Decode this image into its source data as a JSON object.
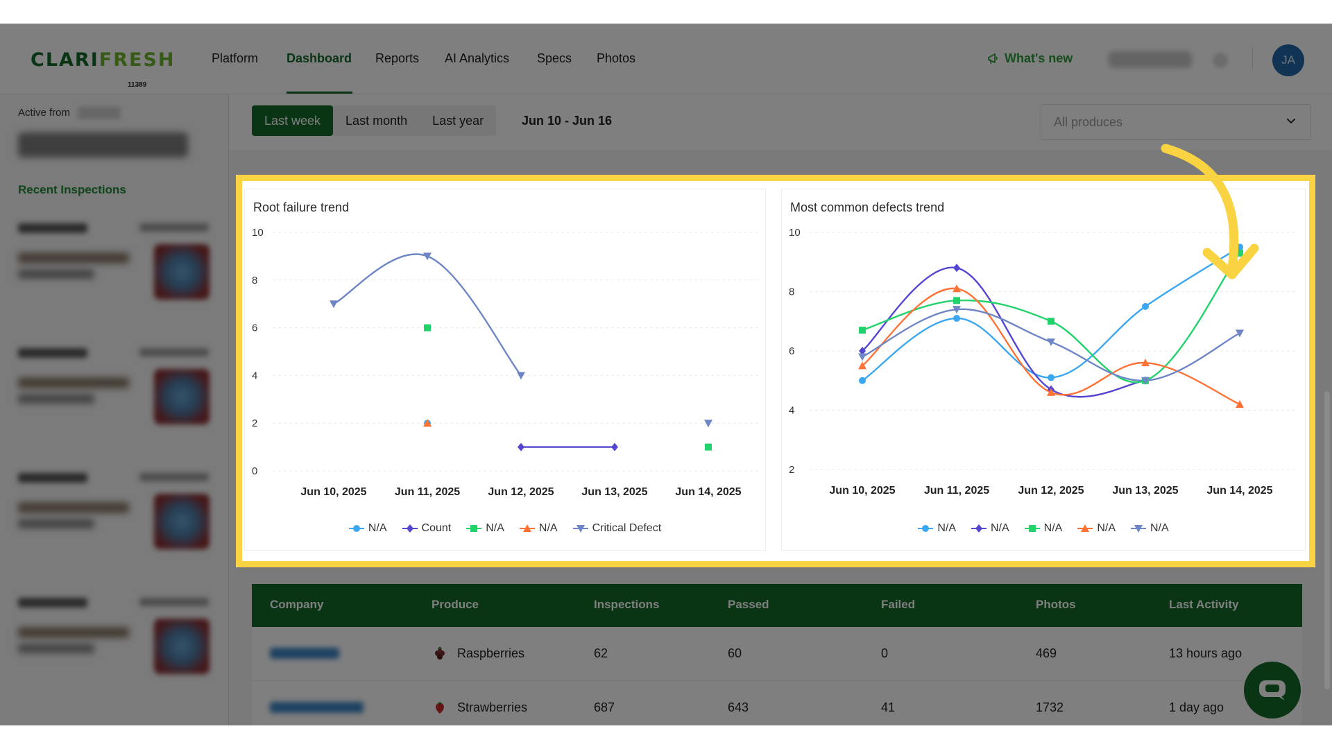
{
  "brand": {
    "logo_left": "CLARI",
    "logo_right": "FRESH",
    "org_id": "11389"
  },
  "nav": {
    "items": [
      "Platform",
      "Dashboard",
      "Reports",
      "AI Analytics",
      "Specs",
      "Photos"
    ],
    "active": "Dashboard",
    "whats_new": "What's new",
    "avatar_initials": "JA"
  },
  "sidebar": {
    "active_from_label": "Active from",
    "recent_title": "Recent Inspections"
  },
  "filters": {
    "ranges": [
      "Last week",
      "Last month",
      "Last year"
    ],
    "active_range": "Last week",
    "date_range": "Jun 10 - Jun 16",
    "produce_placeholder": "All produces"
  },
  "chart_data": [
    {
      "type": "line",
      "title": "Root failure trend",
      "categories": [
        "Jun 10, 2025",
        "Jun 11, 2025",
        "Jun 12, 2025",
        "Jun 13, 2025",
        "Jun 14, 2025"
      ],
      "ylim": [
        0,
        10
      ],
      "yticks": [
        0,
        2,
        4,
        6,
        8,
        10
      ],
      "series": [
        {
          "name": "N/A",
          "color": "#3aa7f0",
          "marker": "circle",
          "values": [
            null,
            2,
            null,
            null,
            null
          ]
        },
        {
          "name": "Count",
          "color": "#5546d2",
          "marker": "diamond",
          "values": [
            null,
            null,
            1,
            1,
            null
          ]
        },
        {
          "name": "N/A",
          "color": "#22d36b",
          "marker": "square",
          "values": [
            null,
            6,
            null,
            null,
            1
          ]
        },
        {
          "name": "N/A",
          "color": "#ff7236",
          "marker": "triangle",
          "values": [
            null,
            2,
            null,
            null,
            null
          ]
        },
        {
          "name": "Critical Defect",
          "color": "#6f86c6",
          "marker": "triangle-down",
          "values": [
            7,
            9,
            4,
            null,
            2
          ]
        }
      ]
    },
    {
      "type": "line",
      "title": "Most common defects trend",
      "categories": [
        "Jun 10, 2025",
        "Jun 11, 2025",
        "Jun 12, 2025",
        "Jun 13, 2025",
        "Jun 14, 2025"
      ],
      "ylim": [
        2,
        10
      ],
      "yticks": [
        2,
        4,
        6,
        8,
        10
      ],
      "series": [
        {
          "name": "N/A",
          "color": "#3aa7f0",
          "marker": "circle",
          "values": [
            5,
            7.1,
            5.1,
            7.5,
            9.5
          ]
        },
        {
          "name": "N/A",
          "color": "#5546d2",
          "marker": "diamond",
          "values": [
            6,
            8.8,
            4.7,
            5,
            null
          ]
        },
        {
          "name": "N/A",
          "color": "#22d36b",
          "marker": "square",
          "values": [
            6.7,
            7.7,
            7,
            5,
            9.3
          ]
        },
        {
          "name": "N/A",
          "color": "#ff7236",
          "marker": "triangle",
          "values": [
            5.5,
            8.1,
            4.6,
            5.6,
            4.2
          ]
        },
        {
          "name": "N/A",
          "color": "#6f86c6",
          "marker": "triangle-down",
          "values": [
            5.8,
            7.4,
            6.3,
            5,
            6.6
          ]
        }
      ]
    }
  ],
  "table": {
    "headers": [
      "Company",
      "Produce",
      "Inspections",
      "Passed",
      "Failed",
      "Photos",
      "Last Activity"
    ],
    "rows": [
      {
        "produce": "Raspberries",
        "inspections": "62",
        "passed": "60",
        "failed": "0",
        "photos": "469",
        "last_activity": "13 hours ago"
      },
      {
        "produce": "Strawberries",
        "inspections": "687",
        "passed": "643",
        "failed": "41",
        "photos": "1732",
        "last_activity": "1 day ago"
      }
    ]
  },
  "colors": {
    "brand_green": "#156b2a",
    "highlight": "#f9d342",
    "accent_light_green": "#6fb52c"
  }
}
